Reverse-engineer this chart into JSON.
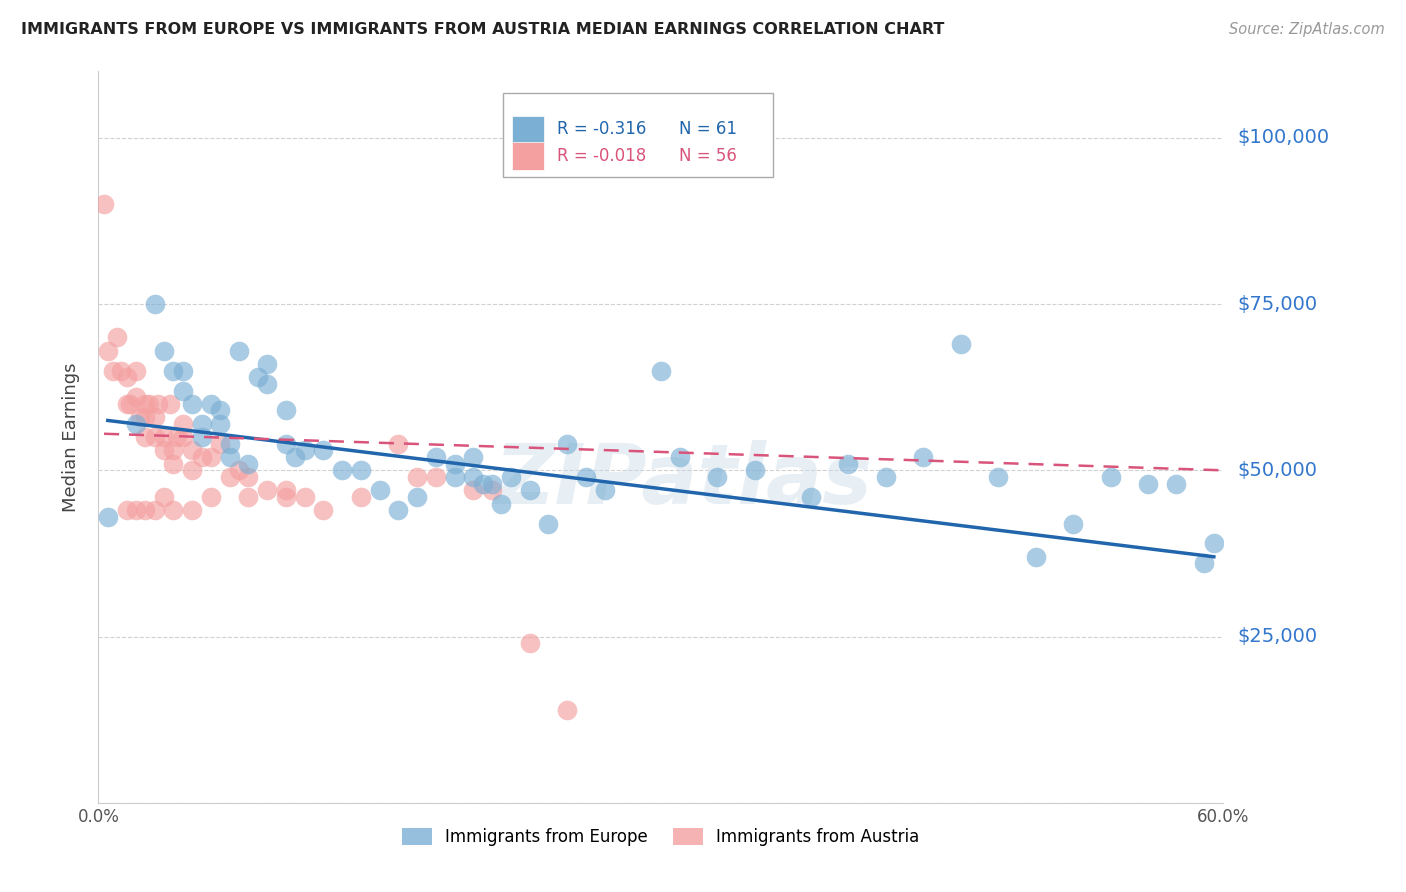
{
  "title": "IMMIGRANTS FROM EUROPE VS IMMIGRANTS FROM AUSTRIA MEDIAN EARNINGS CORRELATION CHART",
  "source": "Source: ZipAtlas.com",
  "ylabel": "Median Earnings",
  "yticks": [
    0,
    25000,
    50000,
    75000,
    100000
  ],
  "ytick_labels": [
    "",
    "$25,000",
    "$50,000",
    "$75,000",
    "$100,000"
  ],
  "xlim": [
    0.0,
    0.6
  ],
  "ylim": [
    0,
    110000
  ],
  "watermark": "ZIPatlas",
  "legend_europe_R": "-0.316",
  "legend_europe_N": "61",
  "legend_austria_R": "-0.018",
  "legend_austria_N": "56",
  "europe_color": "#7BAFD4",
  "austria_color": "#F4A0A0",
  "europe_line_color": "#2166AC",
  "austria_line_color": "#D9547A",
  "europe_scatter_x": [
    0.005,
    0.02,
    0.03,
    0.035,
    0.04,
    0.045,
    0.045,
    0.05,
    0.055,
    0.055,
    0.06,
    0.065,
    0.065,
    0.07,
    0.07,
    0.075,
    0.08,
    0.085,
    0.09,
    0.09,
    0.1,
    0.1,
    0.105,
    0.11,
    0.12,
    0.13,
    0.14,
    0.15,
    0.16,
    0.17,
    0.18,
    0.19,
    0.19,
    0.2,
    0.2,
    0.205,
    0.21,
    0.215,
    0.22,
    0.23,
    0.24,
    0.25,
    0.26,
    0.27,
    0.3,
    0.31,
    0.33,
    0.35,
    0.38,
    0.4,
    0.42,
    0.44,
    0.46,
    0.48,
    0.5,
    0.52,
    0.54,
    0.56,
    0.575,
    0.59,
    0.595
  ],
  "europe_scatter_y": [
    43000,
    57000,
    75000,
    68000,
    65000,
    62000,
    65000,
    60000,
    57000,
    55000,
    60000,
    57000,
    59000,
    54000,
    52000,
    68000,
    51000,
    64000,
    63000,
    66000,
    59000,
    54000,
    52000,
    53000,
    53000,
    50000,
    50000,
    47000,
    44000,
    46000,
    52000,
    51000,
    49000,
    52000,
    49000,
    48000,
    48000,
    45000,
    49000,
    47000,
    42000,
    54000,
    49000,
    47000,
    65000,
    52000,
    49000,
    50000,
    46000,
    51000,
    49000,
    52000,
    69000,
    49000,
    37000,
    42000,
    49000,
    48000,
    48000,
    36000,
    39000
  ],
  "austria_scatter_x": [
    0.003,
    0.005,
    0.008,
    0.01,
    0.012,
    0.015,
    0.015,
    0.017,
    0.02,
    0.02,
    0.022,
    0.025,
    0.025,
    0.025,
    0.027,
    0.03,
    0.03,
    0.032,
    0.035,
    0.035,
    0.038,
    0.04,
    0.04,
    0.042,
    0.045,
    0.045,
    0.05,
    0.05,
    0.055,
    0.06,
    0.065,
    0.07,
    0.075,
    0.08,
    0.09,
    0.1,
    0.11,
    0.12,
    0.14,
    0.16,
    0.17,
    0.18,
    0.2,
    0.21,
    0.23,
    0.25,
    0.015,
    0.02,
    0.025,
    0.03,
    0.035,
    0.04,
    0.05,
    0.06,
    0.08,
    0.1
  ],
  "austria_scatter_y": [
    90000,
    68000,
    65000,
    70000,
    65000,
    64000,
    60000,
    60000,
    61000,
    65000,
    58000,
    58000,
    60000,
    55000,
    60000,
    55000,
    58000,
    60000,
    53000,
    55000,
    60000,
    53000,
    51000,
    55000,
    57000,
    55000,
    53000,
    50000,
    52000,
    52000,
    54000,
    49000,
    50000,
    49000,
    47000,
    47000,
    46000,
    44000,
    46000,
    54000,
    49000,
    49000,
    47000,
    47000,
    24000,
    14000,
    44000,
    44000,
    44000,
    44000,
    46000,
    44000,
    44000,
    46000,
    46000,
    46000
  ]
}
